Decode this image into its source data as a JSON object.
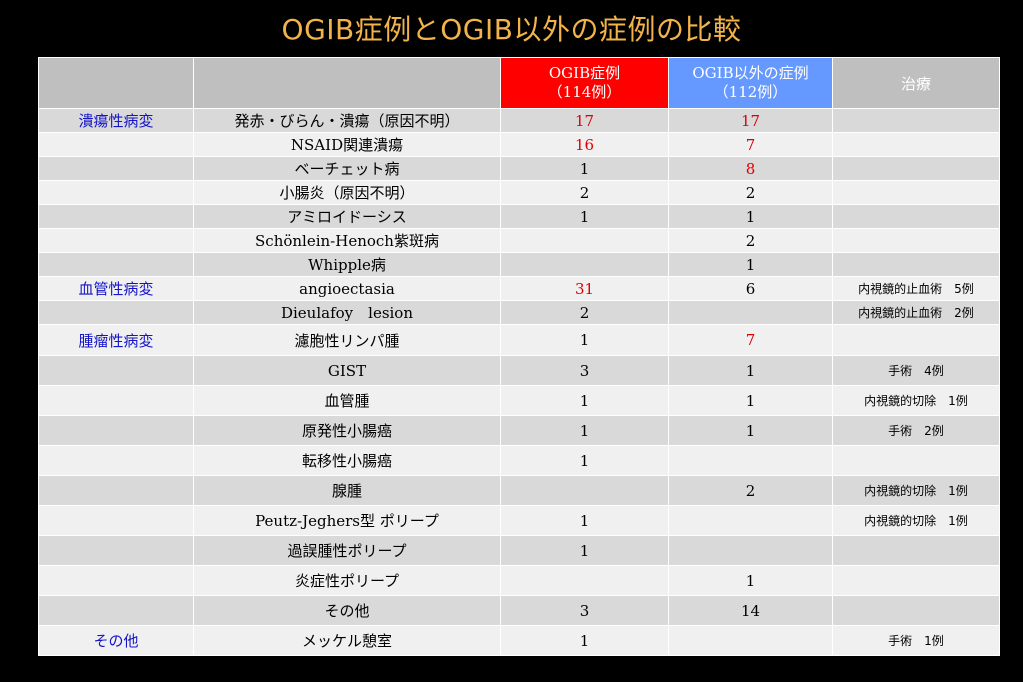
{
  "title": "OGIB症例とOGIB以外の症例の比較",
  "header": {
    "ogib_line1": "OGIB症例",
    "ogib_line2": "（114例）",
    "other_line1": "OGIB以外の症例",
    "other_line2": "（112例）",
    "treatment": "治療"
  },
  "rows": [
    {
      "cat": "潰瘍性病変",
      "name": "発赤・びらん・潰瘍（原因不明）",
      "ogib": "17",
      "other": "17",
      "treat": "",
      "ogib_red": true,
      "other_red": true
    },
    {
      "cat": "",
      "name": "NSAID関連潰瘍",
      "ogib": "16",
      "other": "7",
      "treat": "",
      "ogib_red": true,
      "other_red": true
    },
    {
      "cat": "",
      "name": "ベーチェット病",
      "ogib": "1",
      "other": "8",
      "treat": "",
      "ogib_red": false,
      "other_red": true
    },
    {
      "cat": "",
      "name": "小腸炎（原因不明）",
      "ogib": "2",
      "other": "2",
      "treat": "",
      "ogib_red": false,
      "other_red": false
    },
    {
      "cat": "",
      "name": "アミロイドーシス",
      "ogib": "1",
      "other": "1",
      "treat": "",
      "ogib_red": false,
      "other_red": false
    },
    {
      "cat": "",
      "name": "Schönlein-Henoch紫斑病",
      "ogib": "",
      "other": "2",
      "treat": "",
      "ogib_red": false,
      "other_red": false
    },
    {
      "cat": "",
      "name": "Whipple病",
      "ogib": "",
      "other": "1",
      "treat": "",
      "ogib_red": false,
      "other_red": false
    },
    {
      "cat": "血管性病変",
      "name": "angioectasia",
      "ogib": "31",
      "other": "6",
      "treat": "内視鏡的止血術　5例",
      "ogib_red": true,
      "other_red": false
    },
    {
      "cat": "",
      "name": "Dieulafoy　lesion",
      "ogib": "2",
      "other": "",
      "treat": "内視鏡的止血術　2例",
      "ogib_red": false,
      "other_red": false
    },
    {
      "cat": "腫瘤性病変",
      "name": "濾胞性リンパ腫",
      "ogib": "1",
      "other": "7",
      "treat": "",
      "ogib_red": false,
      "other_red": true
    },
    {
      "cat": "",
      "name": "GIST",
      "ogib": "3",
      "other": "1",
      "treat": "手術　4例",
      "ogib_red": false,
      "other_red": false
    },
    {
      "cat": "",
      "name": "血管腫",
      "ogib": "1",
      "other": "1",
      "treat": "内視鏡的切除　1例",
      "ogib_red": false,
      "other_red": false
    },
    {
      "cat": "",
      "name": "原発性小腸癌",
      "ogib": "1",
      "other": "1",
      "treat": "手術　2例",
      "ogib_red": false,
      "other_red": false
    },
    {
      "cat": "",
      "name": "転移性小腸癌",
      "ogib": "1",
      "other": "",
      "treat": "",
      "ogib_red": false,
      "other_red": false
    },
    {
      "cat": "",
      "name": "腺腫",
      "ogib": "",
      "other": "2",
      "treat": "内視鏡的切除　1例",
      "ogib_red": false,
      "other_red": false
    },
    {
      "cat": "",
      "name": "Peutz-Jeghers型 ポリープ",
      "ogib": "1",
      "other": "",
      "treat": "内視鏡的切除　1例",
      "ogib_red": false,
      "other_red": false
    },
    {
      "cat": "",
      "name": "過誤腫性ポリープ",
      "ogib": "1",
      "other": "",
      "treat": "",
      "ogib_red": false,
      "other_red": false
    },
    {
      "cat": "",
      "name": "炎症性ポリープ",
      "ogib": "",
      "other": "1",
      "treat": "",
      "ogib_red": false,
      "other_red": false
    },
    {
      "cat": "",
      "name": "その他",
      "ogib": "3",
      "other": "14",
      "treat": "",
      "ogib_red": false,
      "other_red": false
    },
    {
      "cat": "その他",
      "name": "メッケル憩室",
      "ogib": "1",
      "other": "",
      "treat": "手術　1例",
      "ogib_red": false,
      "other_red": false
    }
  ]
}
